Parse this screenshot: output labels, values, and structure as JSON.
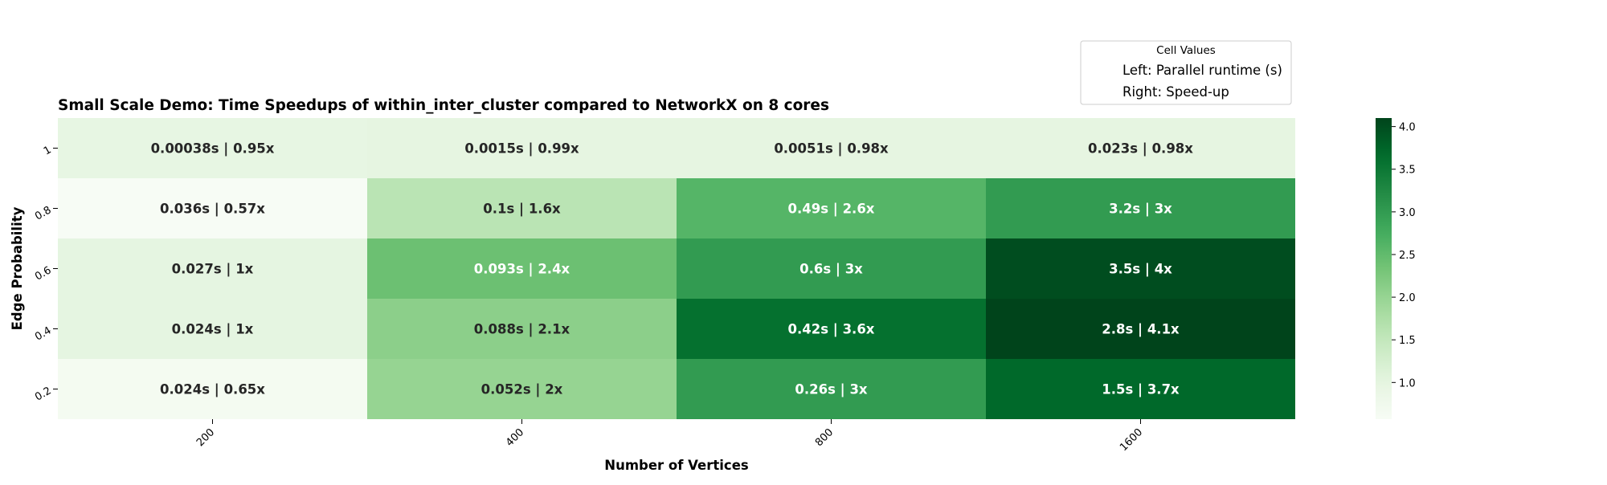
{
  "chart_data": {
    "type": "heatmap",
    "title": "Small Scale Demo: Time Speedups of within_inter_cluster compared to NetworkX on 8 cores",
    "xlabel": "Number of Vertices",
    "ylabel": "Edge Probability",
    "x_categories": [
      "200",
      "400",
      "800",
      "1600"
    ],
    "y_categories": [
      "1",
      "0.8",
      "0.6",
      "0.4",
      "0.2"
    ],
    "runtimes": [
      [
        "0.00038s",
        "0.0015s",
        "0.0051s",
        "0.023s"
      ],
      [
        "0.036s",
        "0.1s",
        "0.49s",
        "3.2s"
      ],
      [
        "0.027s",
        "0.093s",
        "0.6s",
        "3.5s"
      ],
      [
        "0.024s",
        "0.088s",
        "0.42s",
        "2.8s"
      ],
      [
        "0.024s",
        "0.052s",
        "0.26s",
        "1.5s"
      ]
    ],
    "speedups": [
      [
        0.95,
        0.99,
        0.98,
        0.98
      ],
      [
        0.57,
        1.6,
        2.6,
        3.0
      ],
      [
        1.0,
        2.4,
        3.0,
        4.0
      ],
      [
        1.0,
        2.1,
        3.6,
        4.1
      ],
      [
        0.65,
        2.0,
        3.0,
        3.7
      ]
    ],
    "cell_labels": [
      [
        "0.00038s | 0.95x",
        "0.0015s | 0.99x",
        "0.0051s | 0.98x",
        "0.023s | 0.98x"
      ],
      [
        "0.036s | 0.57x",
        "0.1s | 1.6x",
        "0.49s | 2.6x",
        "3.2s | 3x"
      ],
      [
        "0.027s | 1x",
        "0.093s | 2.4x",
        "0.6s | 3x",
        "3.5s | 4x"
      ],
      [
        "0.024s | 1x",
        "0.088s | 2.1x",
        "0.42s | 3.6x",
        "2.8s | 4.1x"
      ],
      [
        "0.024s | 0.65x",
        "0.052s | 2x",
        "0.26s | 3x",
        "1.5s | 3.7x"
      ]
    ],
    "colormap": "Greens",
    "colorbar": {
      "min": 0.57,
      "max": 4.1,
      "ticks": [
        1.0,
        1.5,
        2.0,
        2.5,
        3.0,
        3.5,
        4.0
      ],
      "tick_labels": [
        "1.0",
        "1.5",
        "2.0",
        "2.5",
        "3.0",
        "3.5",
        "4.0"
      ]
    },
    "legend": {
      "title": "Cell Values",
      "entries": [
        "Left: Parallel runtime (s)",
        "Right: Speed-up"
      ],
      "placement": "top-right"
    },
    "grid": false,
    "colors": {
      "text_dark": "#262626",
      "text_light": "#ffffff",
      "axis": "#000000",
      "legend_border": "#cccccc"
    }
  }
}
